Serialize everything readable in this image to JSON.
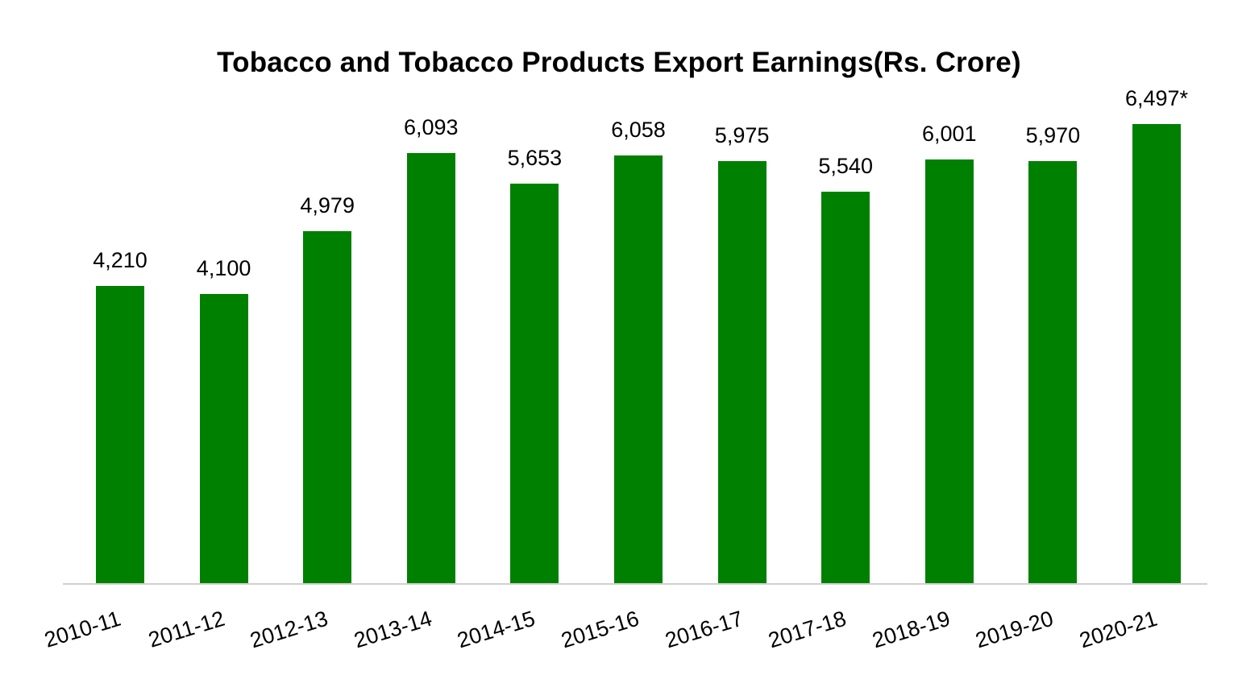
{
  "chart_data": {
    "type": "bar",
    "title": "Tobacco and Tobacco Products Export Earnings(Rs. Crore)",
    "xlabel": "",
    "ylabel": "",
    "categories": [
      "2010-11",
      "2011-12",
      "2012-13",
      "2013-14",
      "2014-15",
      "2015-16",
      "2016-17",
      "2017-18",
      "2018-19",
      "2019-20",
      "2020-21"
    ],
    "values": [
      4210,
      4100,
      4979,
      6093,
      5653,
      6058,
      5975,
      5540,
      6001,
      5970,
      6497
    ],
    "labels": [
      "4,210",
      "4,100",
      "4,979",
      "6,093",
      "5,653",
      "6,058",
      "5,975",
      "5,540",
      "6,001",
      "5,970",
      "6,497*"
    ],
    "ylim": [
      0,
      6500
    ],
    "grid": false,
    "legend": null,
    "color": "#008000"
  }
}
